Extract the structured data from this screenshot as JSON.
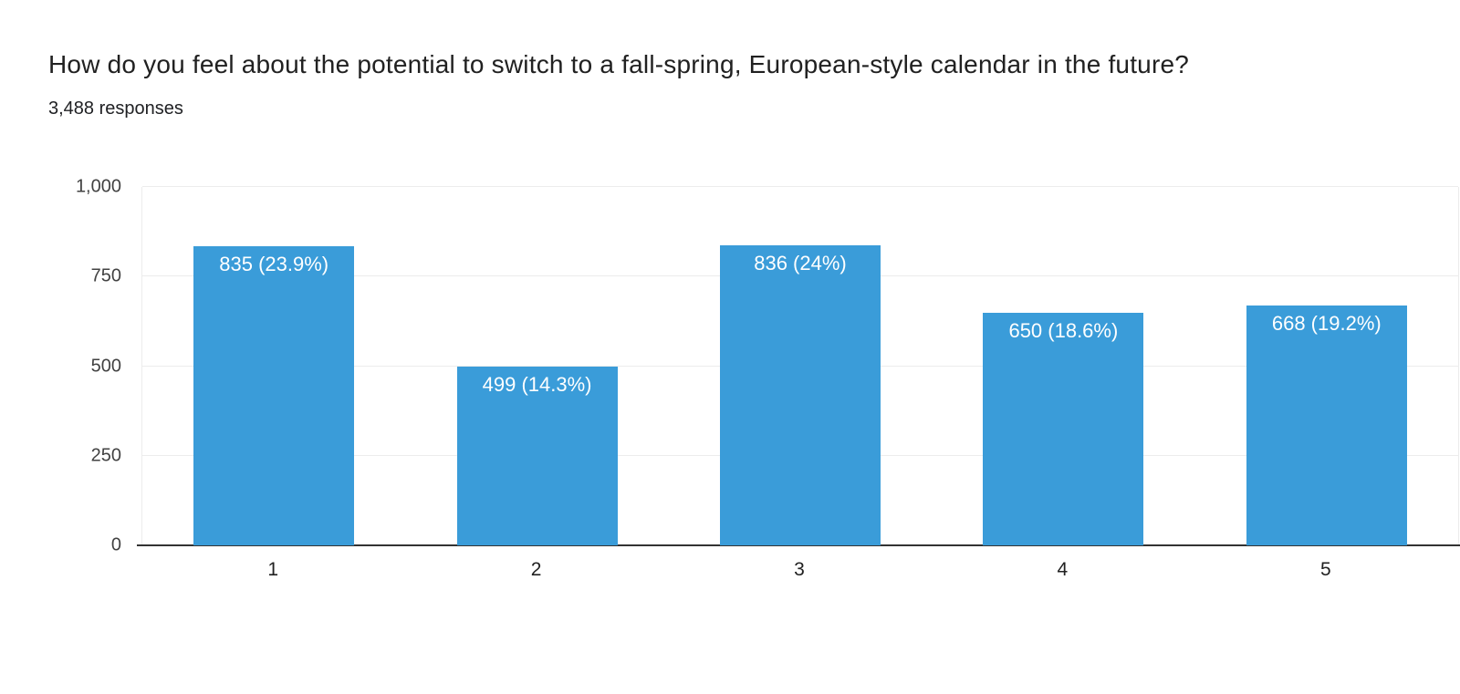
{
  "header": {
    "title": "How do you feel about the potential to switch to a fall-spring, European-style calendar in the future?",
    "responses": "3,488 responses"
  },
  "chart_data": {
    "type": "bar",
    "title": "How do you feel about the potential to switch to a fall-spring, European-style calendar in the future?",
    "subtitle": "3,488 responses",
    "categories": [
      "1",
      "2",
      "3",
      "4",
      "5"
    ],
    "values": [
      835,
      499,
      836,
      650,
      668
    ],
    "bar_labels": [
      "835 (23.9%)",
      "499 (14.3%)",
      "836 (24%)",
      "650 (18.6%)",
      "668 (19.2%)"
    ],
    "percentages": [
      23.9,
      14.3,
      24,
      18.6,
      19.2
    ],
    "y_ticks": [
      "0",
      "250",
      "500",
      "750",
      "1,000"
    ],
    "ylim": [
      0,
      1000
    ],
    "xlabel": "",
    "ylabel": "",
    "grid": true,
    "legend": "none",
    "bar_color": "#3A9CD9",
    "bar_label_color": "#ffffff",
    "gridline_color": "#ececec",
    "axis_line_color": "#333333"
  }
}
